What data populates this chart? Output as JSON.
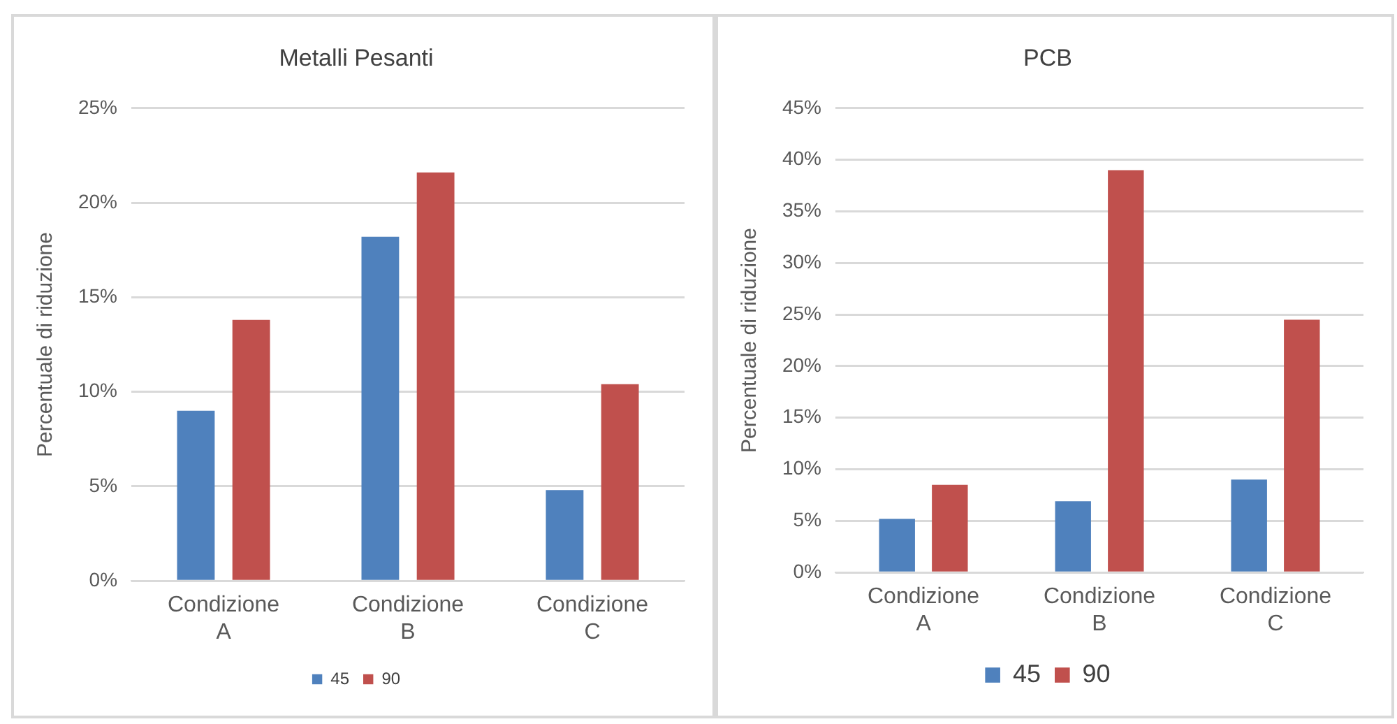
{
  "chart_data": [
    {
      "type": "bar",
      "title": "Metalli Pesanti",
      "ylabel": "Percentuale di riduzione",
      "categories": [
        "Condizione A",
        "Condizione B",
        "Condizione C"
      ],
      "series": [
        {
          "name": "45",
          "color": "#4f81bd",
          "values": [
            9.0,
            18.2,
            4.8
          ]
        },
        {
          "name": "90",
          "color": "#c0504d",
          "values": [
            13.8,
            21.6,
            10.4
          ]
        }
      ],
      "ylim": [
        0,
        25
      ],
      "yticks": [
        {
          "value": 0,
          "label": "0%"
        },
        {
          "value": 5,
          "label": "5%"
        },
        {
          "value": 10,
          "label": "10%"
        },
        {
          "value": 15,
          "label": "15%"
        },
        {
          "value": 20,
          "label": "20%"
        },
        {
          "value": 25,
          "label": "25%"
        }
      ],
      "grid": "y",
      "legend": "bottom"
    },
    {
      "type": "bar",
      "title": "PCB",
      "ylabel": "Percentuale di riduzione",
      "categories": [
        "Condizione A",
        "Condizione B",
        "Condizione C"
      ],
      "series": [
        {
          "name": "45",
          "color": "#4f81bd",
          "values": [
            5.2,
            6.9,
            9.0
          ]
        },
        {
          "name": "90",
          "color": "#c0504d",
          "values": [
            8.5,
            39.0,
            24.5
          ]
        }
      ],
      "ylim": [
        0,
        45
      ],
      "yticks": [
        {
          "value": 0,
          "label": "0%"
        },
        {
          "value": 5,
          "label": "5%"
        },
        {
          "value": 10,
          "label": "10%"
        },
        {
          "value": 15,
          "label": "15%"
        },
        {
          "value": 20,
          "label": "20%"
        },
        {
          "value": 25,
          "label": "25%"
        },
        {
          "value": 30,
          "label": "30%"
        },
        {
          "value": 35,
          "label": "35%"
        },
        {
          "value": 40,
          "label": "40%"
        },
        {
          "value": 45,
          "label": "45%"
        }
      ],
      "grid": "y",
      "legend": "bottom"
    }
  ]
}
